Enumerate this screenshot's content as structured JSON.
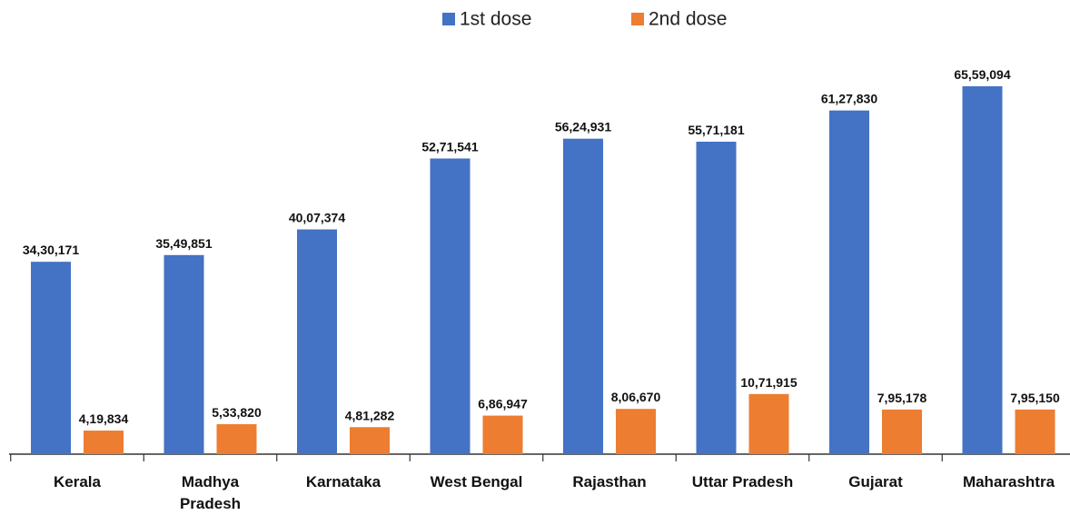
{
  "chart_data": {
    "type": "bar",
    "categories": [
      "Kerala",
      "Madhya\nPradesh",
      "Karnataka",
      "West Bengal",
      "Rajasthan",
      "Uttar Pradesh",
      "Gujarat",
      "Maharashtra"
    ],
    "series": [
      {
        "name": "1st dose",
        "color": "#4472c4",
        "values": [
          3430171,
          3549851,
          4007374,
          5271541,
          5624931,
          5571181,
          6127830,
          6559094
        ],
        "value_labels": [
          "34,30,171",
          "35,49,851",
          "40,07,374",
          "52,71,541",
          "56,24,931",
          "55,71,181",
          "61,27,830",
          "65,59,094"
        ]
      },
      {
        "name": "2nd dose",
        "color": "#ed7d31",
        "values": [
          419834,
          533820,
          481282,
          686947,
          806670,
          1071915,
          795178,
          795150
        ],
        "value_labels": [
          "4,19,834",
          "5,33,820",
          "4,81,282",
          "6,86,947",
          "8,06,670",
          "10,71,915",
          "7,95,178",
          "7,95,150"
        ]
      }
    ],
    "legend": "top"
  }
}
